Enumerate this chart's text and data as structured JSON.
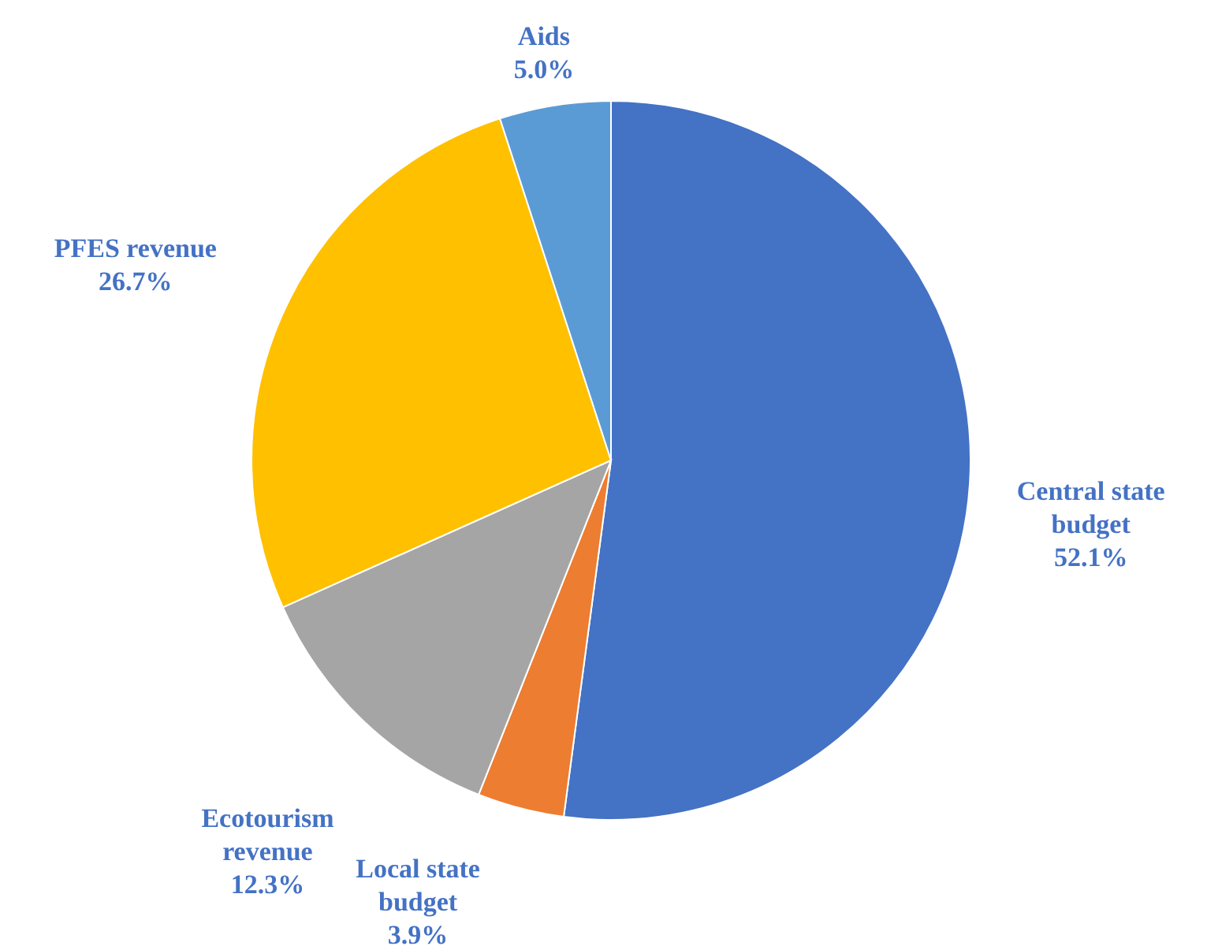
{
  "chart_data": {
    "type": "pie",
    "categories": [
      "Central state budget",
      "Local state budget",
      "Ecotourism revenue",
      "PFES revenue",
      "Aids"
    ],
    "values": [
      52.1,
      3.9,
      12.3,
      26.7,
      5.0
    ],
    "colors": [
      "#4472c4",
      "#ed7d31",
      "#a5a5a5",
      "#ffc000",
      "#5b9bd5"
    ],
    "value_labels": [
      "52.1%",
      "3.9%",
      "12.3%",
      "26.7%",
      "5.0%"
    ]
  }
}
